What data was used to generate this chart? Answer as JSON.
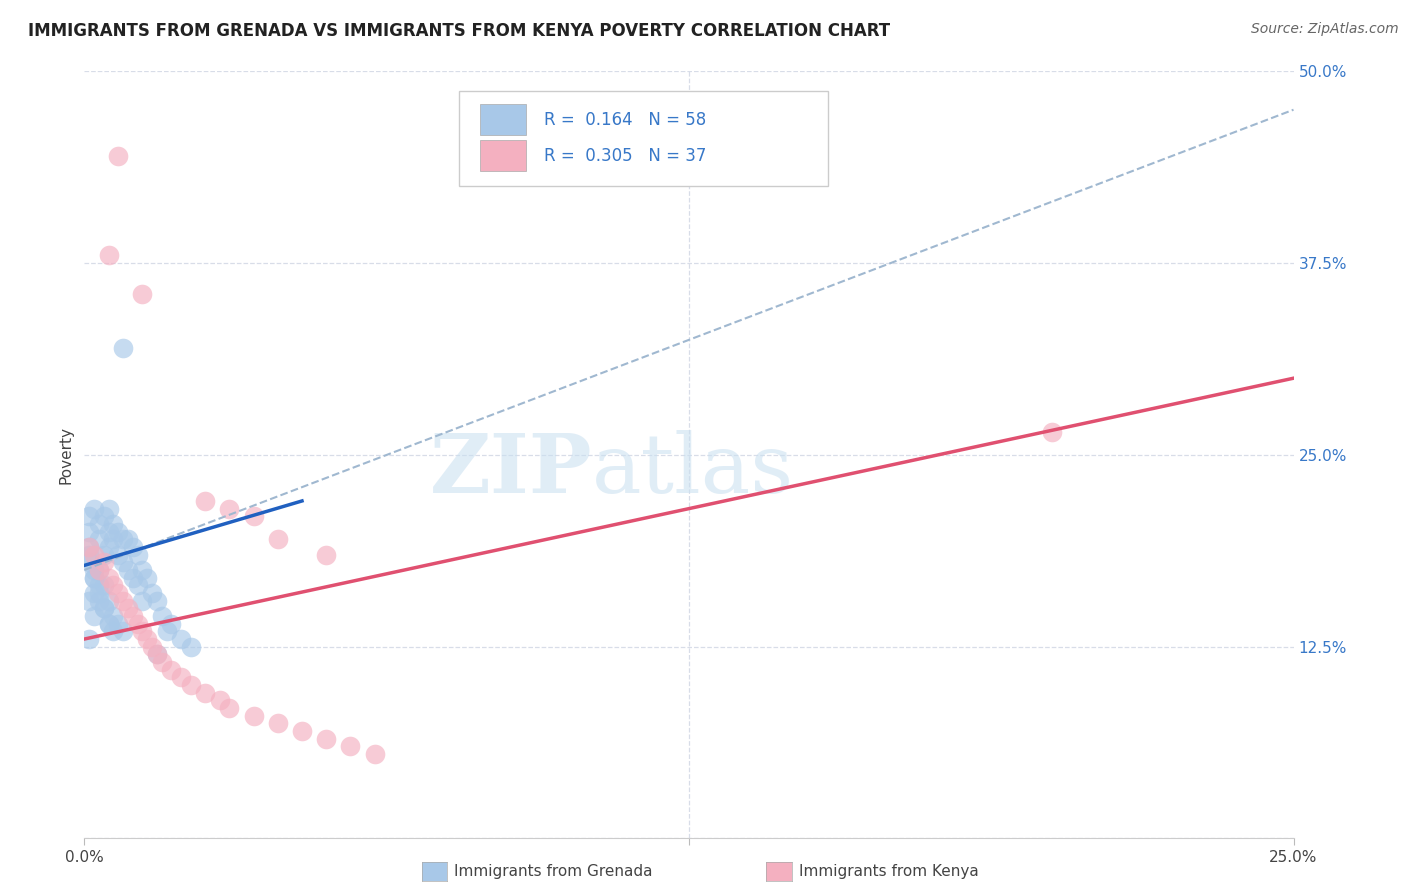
{
  "title": "IMMIGRANTS FROM GRENADA VS IMMIGRANTS FROM KENYA POVERTY CORRELATION CHART",
  "source": "Source: ZipAtlas.com",
  "ylabel": "Poverty",
  "xlim": [
    0.0,
    0.25
  ],
  "ylim": [
    0.0,
    0.5
  ],
  "ytick_vals": [
    0.0,
    0.125,
    0.25,
    0.375,
    0.5
  ],
  "ytick_labels": [
    "",
    "12.5%",
    "25.0%",
    "37.5%",
    "50.0%"
  ],
  "xtick_vals": [
    0.0,
    0.125,
    0.25
  ],
  "xtick_labels": [
    "0.0%",
    "",
    "25.0%"
  ],
  "grenada_R": 0.164,
  "grenada_N": 58,
  "kenya_R": 0.305,
  "kenya_N": 37,
  "grenada_scatter_color": "#a8c8e8",
  "kenya_scatter_color": "#f4b0c0",
  "grenada_line_color": "#2060c0",
  "kenya_line_color": "#e05070",
  "dash_line_color": "#a0b8d0",
  "grid_color": "#d8dde8",
  "title_color": "#222222",
  "label_color": "#3878c8",
  "watermark_color": "#c8dff0",
  "background_color": "#ffffff",
  "title_fontsize": 12,
  "tick_fontsize": 11,
  "legend_fontsize": 12,
  "ylabel_fontsize": 11,
  "grenada_x": [
    0.002,
    0.003,
    0.003,
    0.004,
    0.004,
    0.005,
    0.005,
    0.005,
    0.006,
    0.006,
    0.007,
    0.007,
    0.008,
    0.008,
    0.009,
    0.009,
    0.01,
    0.01,
    0.011,
    0.011,
    0.012,
    0.012,
    0.013,
    0.014,
    0.015,
    0.016,
    0.017,
    0.018,
    0.02,
    0.022,
    0.001,
    0.001,
    0.001,
    0.002,
    0.002,
    0.003,
    0.004,
    0.005,
    0.006,
    0.003,
    0.004,
    0.005,
    0.006,
    0.007,
    0.008,
    0.001,
    0.002,
    0.003,
    0.004,
    0.005,
    0.001,
    0.002,
    0.003,
    0.001,
    0.002,
    0.001,
    0.015,
    0.008
  ],
  "grenada_y": [
    0.215,
    0.205,
    0.195,
    0.21,
    0.185,
    0.215,
    0.2,
    0.19,
    0.205,
    0.195,
    0.2,
    0.185,
    0.195,
    0.18,
    0.195,
    0.175,
    0.19,
    0.17,
    0.185,
    0.165,
    0.175,
    0.155,
    0.17,
    0.16,
    0.155,
    0.145,
    0.135,
    0.14,
    0.13,
    0.125,
    0.21,
    0.2,
    0.19,
    0.17,
    0.16,
    0.155,
    0.15,
    0.14,
    0.135,
    0.175,
    0.165,
    0.155,
    0.145,
    0.14,
    0.135,
    0.18,
    0.17,
    0.16,
    0.15,
    0.14,
    0.185,
    0.175,
    0.165,
    0.155,
    0.145,
    0.13,
    0.12,
    0.32
  ],
  "kenya_x": [
    0.001,
    0.002,
    0.003,
    0.004,
    0.005,
    0.006,
    0.007,
    0.008,
    0.009,
    0.01,
    0.011,
    0.012,
    0.013,
    0.014,
    0.015,
    0.016,
    0.018,
    0.02,
    0.022,
    0.025,
    0.028,
    0.03,
    0.035,
    0.04,
    0.045,
    0.05,
    0.055,
    0.06,
    0.025,
    0.03,
    0.035,
    0.04,
    0.05,
    0.2,
    0.007,
    0.005,
    0.012
  ],
  "kenya_y": [
    0.19,
    0.185,
    0.175,
    0.18,
    0.17,
    0.165,
    0.16,
    0.155,
    0.15,
    0.145,
    0.14,
    0.135,
    0.13,
    0.125,
    0.12,
    0.115,
    0.11,
    0.105,
    0.1,
    0.095,
    0.09,
    0.085,
    0.08,
    0.075,
    0.07,
    0.065,
    0.06,
    0.055,
    0.22,
    0.215,
    0.21,
    0.195,
    0.185,
    0.265,
    0.445,
    0.38,
    0.355
  ],
  "grenada_line_x": [
    0.0,
    0.045
  ],
  "grenada_line_y": [
    0.178,
    0.22
  ],
  "kenya_line_x": [
    0.0,
    0.25
  ],
  "kenya_line_y": [
    0.13,
    0.3
  ],
  "dash_line_x": [
    0.0,
    0.25
  ],
  "dash_line_y": [
    0.175,
    0.475
  ]
}
